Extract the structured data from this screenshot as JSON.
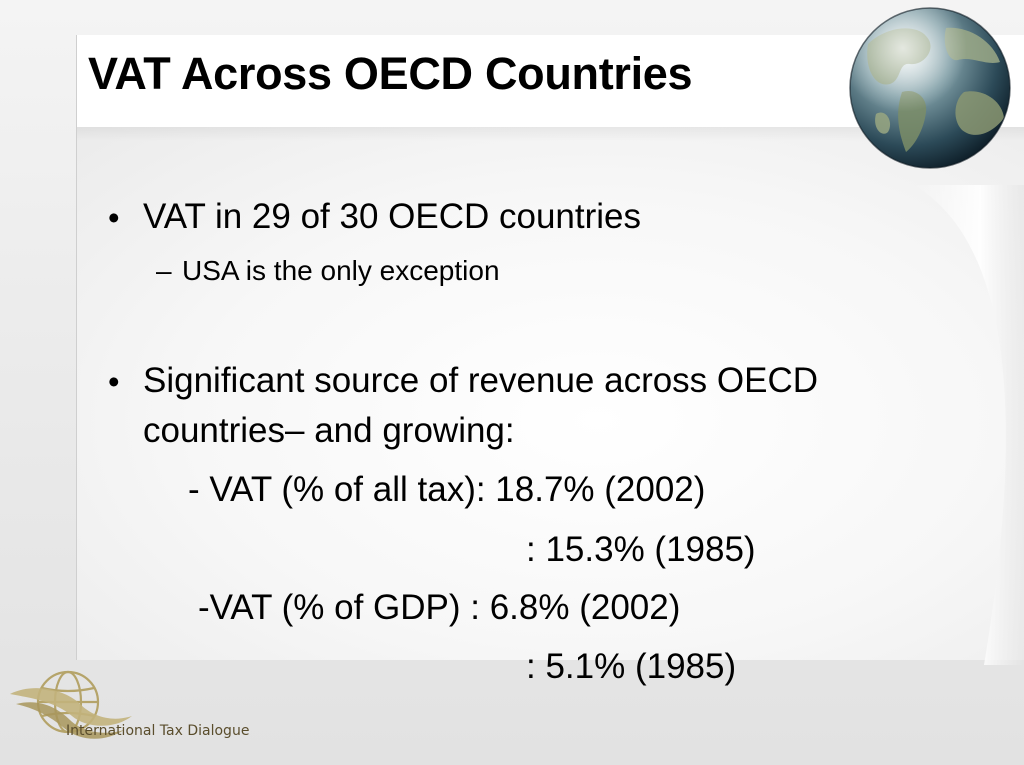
{
  "slide": {
    "title": "VAT Across OECD Countries",
    "bullets": [
      {
        "text": "VAT in 29 of 30 OECD countries",
        "subitems": [
          "USA is the only exception"
        ]
      },
      {
        "text_line1": "Significant source of revenue across OECD",
        "text_line2": "countries– and growing:",
        "stats": [
          {
            "label": "- VAT (% of all tax): 18.7% (2002)"
          },
          {
            "label": ":  15.3% (1985)"
          },
          {
            "label": "-VAT (% of GDP) :  6.8%  (2002)"
          },
          {
            "label": ":  5.1%  (1985)"
          }
        ]
      }
    ],
    "bullet_symbol": "•",
    "dash_symbol": "–"
  },
  "logo": {
    "name": "International Tax Dialogue",
    "icon": "globe-logo-icon"
  },
  "decoration": {
    "globe_icon": "earth-globe-icon"
  },
  "colors": {
    "text": "#000000",
    "logo_text": "#5a4d2c",
    "logo_gold": "#b5a46a",
    "background": "#ececec"
  }
}
